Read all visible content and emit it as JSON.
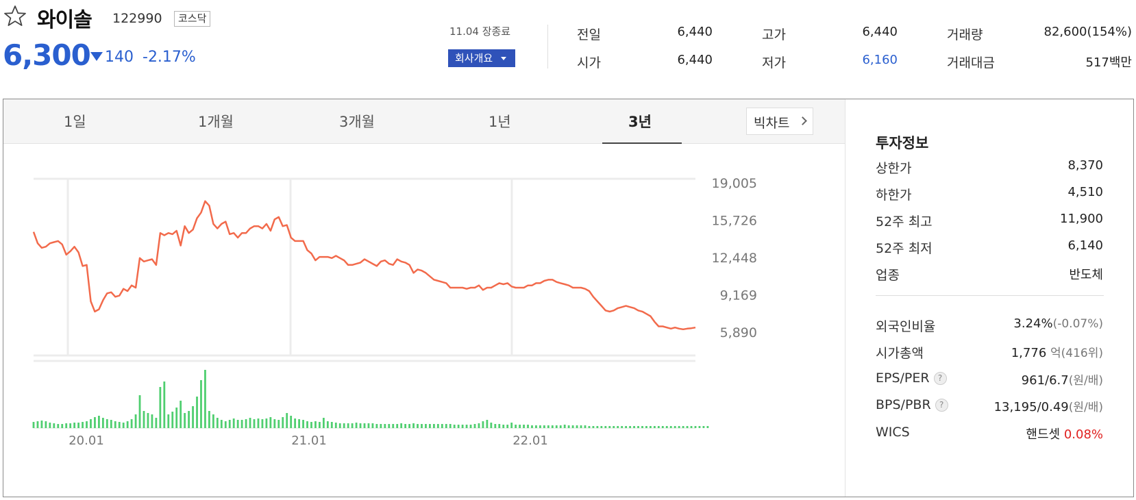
{
  "stock": {
    "name": "와이솔",
    "code": "122990",
    "market": "코스닥",
    "price": "6,300",
    "change": "140",
    "change_rate": "-2.17%",
    "date_status": "11.04 장종료",
    "company_button": "회사개요"
  },
  "stats": {
    "prev_close_label": "전일",
    "prev_close": "6,440",
    "open_label": "시가",
    "open": "6,440",
    "high_label": "고가",
    "high": "6,440",
    "low_label": "저가",
    "low": "6,160",
    "volume_label": "거래량",
    "volume": "82,600(154%)",
    "amount_label": "거래대금",
    "amount": "517백만"
  },
  "tabs": [
    "1일",
    "1개월",
    "3개월",
    "1년",
    "3년"
  ],
  "active_tab": "3년",
  "big_chart_label": "빅차트",
  "invest": {
    "title": "투자정보",
    "upper_limit_label": "상한가",
    "upper_limit": "8,370",
    "lower_limit_label": "하한가",
    "lower_limit": "4,510",
    "high52_label": "52주 최고",
    "high52": "11,900",
    "low52_label": "52주 최저",
    "low52": "6,140",
    "industry_label": "업종",
    "industry": "반도체",
    "foreign_label": "외국인비율",
    "foreign": "3.24%",
    "foreign_change": "(-0.07%)",
    "mcap_label": "시가총액",
    "mcap": "1,776",
    "mcap_unit": "억",
    "mcap_rank": "(416위)",
    "eps_label": "EPS/PER",
    "eps": "961/6.7",
    "eps_unit": "(원/배)",
    "bps_label": "BPS/PBR",
    "bps": "13,195/0.49",
    "bps_unit": "(원/배)",
    "wics_label": "WICS",
    "wics": "핸드셋",
    "wics_change": "0.08%",
    "help": "?"
  },
  "colors": {
    "up": "#e0201f",
    "down": "#2a5fcf",
    "line": "#f26a4b",
    "volume": "#4fce6f"
  },
  "chart_data": {
    "type": "line",
    "x_tick_labels": [
      "20.01",
      "21.01",
      "22.01"
    ],
    "y_tick_labels": [
      "19,005",
      "15,726",
      "12,448",
      "9,169",
      "5,890"
    ],
    "ylim": [
      5890,
      19005
    ],
    "series": [
      {
        "type": "line",
        "values": [
          14700,
          13700,
          13300,
          13400,
          13700,
          13800,
          13900,
          13600,
          12700,
          13000,
          13400,
          12900,
          11700,
          11800,
          8600,
          7700,
          7900,
          8700,
          9300,
          9400,
          9000,
          9100,
          9700,
          9500,
          10000,
          9800,
          12400,
          12100,
          12200,
          12300,
          11800,
          14600,
          14400,
          14600,
          14500,
          14800,
          13500,
          15200,
          14600,
          14900,
          15900,
          16400,
          17400,
          17000,
          15400,
          15000,
          15400,
          15600,
          14500,
          14600,
          14200,
          14600,
          14600,
          15000,
          15200,
          15200,
          15000,
          15400,
          14800,
          15800,
          16000,
          15200,
          15300,
          14200,
          13900,
          13900,
          13900,
          13100,
          12800,
          12200,
          12500,
          12500,
          12500,
          12400,
          12600,
          12400,
          12200,
          11800,
          11800,
          11900,
          12000,
          12300,
          12100,
          11900,
          11700,
          12100,
          12200,
          11900,
          11800,
          12300,
          12100,
          12000,
          11800,
          11100,
          11400,
          11300,
          11100,
          10800,
          10500,
          10400,
          10300,
          10200,
          9800,
          9800,
          9800,
          9800,
          9700,
          9800,
          9800,
          10000,
          9600,
          9800,
          9800,
          10000,
          10200,
          10100,
          10200,
          9900,
          9800,
          9800,
          9800,
          10000,
          10000,
          10200,
          10200,
          10400,
          10500,
          10500,
          10300,
          10200,
          10100,
          10000,
          9800,
          9800,
          9800,
          9700,
          9500,
          9000,
          8600,
          8200,
          7800,
          7700,
          7800,
          8000,
          8100,
          8200,
          8100,
          8000,
          7800,
          7700,
          7500,
          7300,
          6800,
          6400,
          6400,
          6300,
          6200,
          6300,
          6200,
          6140,
          6200,
          6240,
          6300
        ]
      },
      {
        "type": "bar",
        "values": [
          9,
          10,
          11,
          10,
          8,
          7,
          6,
          6,
          7,
          7,
          8,
          8,
          9,
          10,
          13,
          16,
          18,
          15,
          13,
          12,
          10,
          9,
          8,
          10,
          13,
          20,
          48,
          25,
          22,
          20,
          15,
          60,
          68,
          20,
          24,
          30,
          40,
          22,
          25,
          32,
          46,
          70,
          85,
          25,
          20,
          15,
          12,
          10,
          12,
          14,
          12,
          12,
          13,
          15,
          13,
          14,
          13,
          14,
          16,
          13,
          12,
          16,
          22,
          18,
          14,
          13,
          12,
          10,
          9,
          10,
          9,
          15,
          10,
          9,
          8,
          7,
          7,
          7,
          7,
          8,
          7,
          7,
          7,
          7,
          6,
          6,
          6,
          6,
          6,
          6,
          7,
          6,
          6,
          7,
          6,
          6,
          6,
          6,
          6,
          6,
          6,
          6,
          6,
          5,
          5,
          5,
          5,
          5,
          6,
          7,
          10,
          12,
          8,
          6,
          6,
          5,
          5,
          8,
          5,
          5,
          5,
          5,
          4,
          4,
          4,
          4,
          4,
          4,
          4,
          4,
          5,
          4,
          4,
          4,
          4,
          4,
          3,
          3,
          3,
          3,
          3,
          3,
          3,
          3,
          3,
          3,
          3,
          3,
          3,
          3,
          3,
          3,
          3,
          3,
          3,
          3,
          3,
          3,
          3,
          3,
          3,
          3,
          3,
          3,
          3,
          3
        ]
      }
    ]
  }
}
